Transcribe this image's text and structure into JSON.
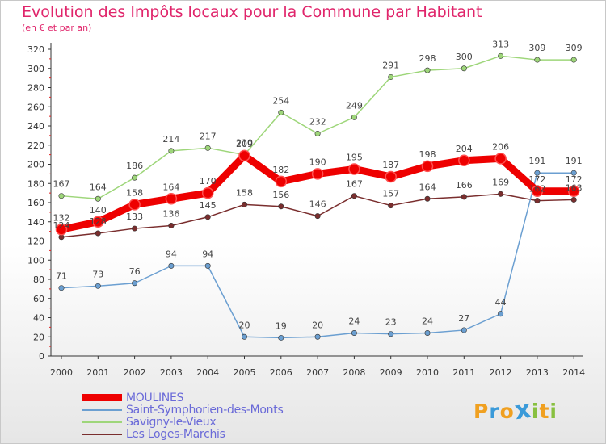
{
  "header": {
    "title": "Evolution des Impôts locaux pour la Commune par Habitant",
    "subtitle": "(en € et par an)"
  },
  "chart_data": {
    "type": "line",
    "title": "Evolution des Impôts locaux pour la Commune par Habitant",
    "ylabel": "(en € et par an)",
    "xlabel": "",
    "ylim": [
      0,
      320
    ],
    "yticks": [
      0,
      20,
      40,
      60,
      80,
      100,
      120,
      140,
      160,
      180,
      200,
      220,
      240,
      260,
      280,
      300,
      320
    ],
    "grid": false,
    "legend_position": "bottom-left",
    "categories": [
      "2000",
      "2001",
      "2002",
      "2003",
      "2004",
      "2005",
      "2006",
      "2007",
      "2008",
      "2009",
      "2010",
      "2011",
      "2012",
      "2013",
      "2014"
    ],
    "series": [
      {
        "name": "MOULINES",
        "color": "#ee0000",
        "values": [
          132,
          140,
          158,
          164,
          170,
          209,
          182,
          190,
          195,
          187,
          198,
          204,
          206,
          172,
          172
        ]
      },
      {
        "name": "Saint-Symphorien-des-Monts",
        "color": "#6b9fd1",
        "values": [
          71,
          73,
          76,
          94,
          94,
          20,
          19,
          20,
          24,
          23,
          24,
          27,
          44,
          191,
          191
        ]
      },
      {
        "name": "Savigny-le-Vieux",
        "color": "#9ed67a",
        "values": [
          167,
          164,
          186,
          214,
          217,
          210,
          254,
          232,
          249,
          291,
          298,
          300,
          313,
          309,
          309
        ]
      },
      {
        "name": "Les Loges-Marchis",
        "color": "#7a2e2e",
        "values": [
          124,
          128,
          133,
          136,
          145,
          158,
          156,
          146,
          167,
          157,
          164,
          166,
          169,
          162,
          163
        ]
      }
    ]
  },
  "logo": {
    "letters": [
      "P",
      "r",
      "o",
      "x",
      "i",
      "t",
      "i"
    ],
    "colors": [
      "#f0a020",
      "#3a9ad9",
      "#f0a020",
      "#3a9ad9",
      "#88c040",
      "#f0a020",
      "#88c040"
    ]
  }
}
